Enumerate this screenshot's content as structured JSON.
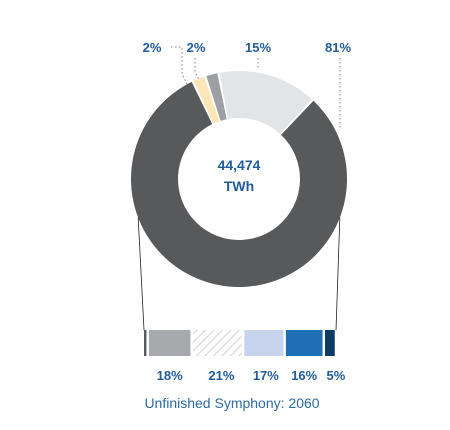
{
  "chart_data": [
    {
      "type": "pie",
      "style": "donut",
      "center_label": {
        "value": "44,474",
        "unit": "TWh"
      },
      "slices": [
        {
          "label": "81%",
          "value": 81,
          "color": "#58595b"
        },
        {
          "label": "2%",
          "value": 2,
          "color": "#fbe6b8"
        },
        {
          "label": "2%",
          "value": 2,
          "color": "#9d9fa2"
        },
        {
          "label": "15%",
          "value": 15,
          "color": "#e3e4e5"
        }
      ]
    },
    {
      "type": "bar",
      "orientation": "horizontal",
      "stacked": true,
      "segments": [
        {
          "label": "",
          "value": 1.5,
          "color": "#58595b"
        },
        {
          "label": "18%",
          "value": 18,
          "color": "#a7a9ac"
        },
        {
          "label": "21%",
          "value": 21,
          "color": "#e6e7e8",
          "pattern": "hatched"
        },
        {
          "label": "17%",
          "value": 17,
          "color": "#c8d4ee"
        },
        {
          "label": "16%",
          "value": 16,
          "color": "#1f6fb5"
        },
        {
          "label": "5%",
          "value": 5,
          "color": "#0d3b66"
        }
      ]
    }
  ],
  "caption": "Unfinished Symphony: 2060",
  "colors": {
    "label_blue": "#1f5c99",
    "caption_blue": "#2d6aa6",
    "leader_line": "#808080"
  }
}
